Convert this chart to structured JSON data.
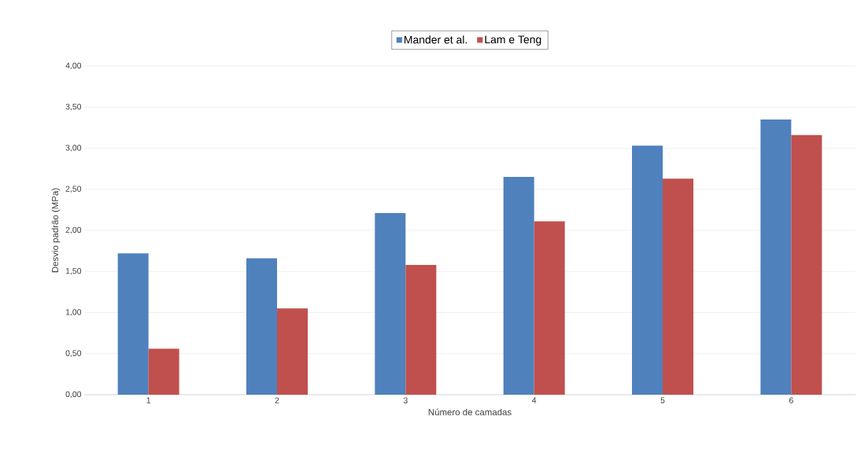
{
  "chart_data": {
    "type": "bar",
    "xlabel": "Número de camadas",
    "ylabel": "Desvio padrão (MPa)",
    "categories": [
      "1",
      "2",
      "3",
      "4",
      "5",
      "6"
    ],
    "series": [
      {
        "name": "Mander et al.",
        "color": "#4f81bd",
        "values": [
          1.72,
          1.66,
          2.21,
          2.65,
          3.03,
          3.35
        ]
      },
      {
        "name": "Lam e Teng",
        "color": "#c0504d",
        "values": [
          0.56,
          1.05,
          1.58,
          2.11,
          2.63,
          3.16
        ]
      }
    ],
    "ylim": [
      0,
      4
    ],
    "yticks": [
      {
        "value": 0,
        "label": "0,00"
      },
      {
        "value": 0.5,
        "label": "0,50"
      },
      {
        "value": 1,
        "label": "1,00"
      },
      {
        "value": 1.5,
        "label": "1,50"
      },
      {
        "value": 2,
        "label": "2,00"
      },
      {
        "value": 2.5,
        "label": "2,50"
      },
      {
        "value": 3,
        "label": "3,00"
      },
      {
        "value": 3.5,
        "label": "3,50"
      },
      {
        "value": 4,
        "label": "4,00"
      }
    ],
    "grid": "y",
    "legend": "top"
  }
}
